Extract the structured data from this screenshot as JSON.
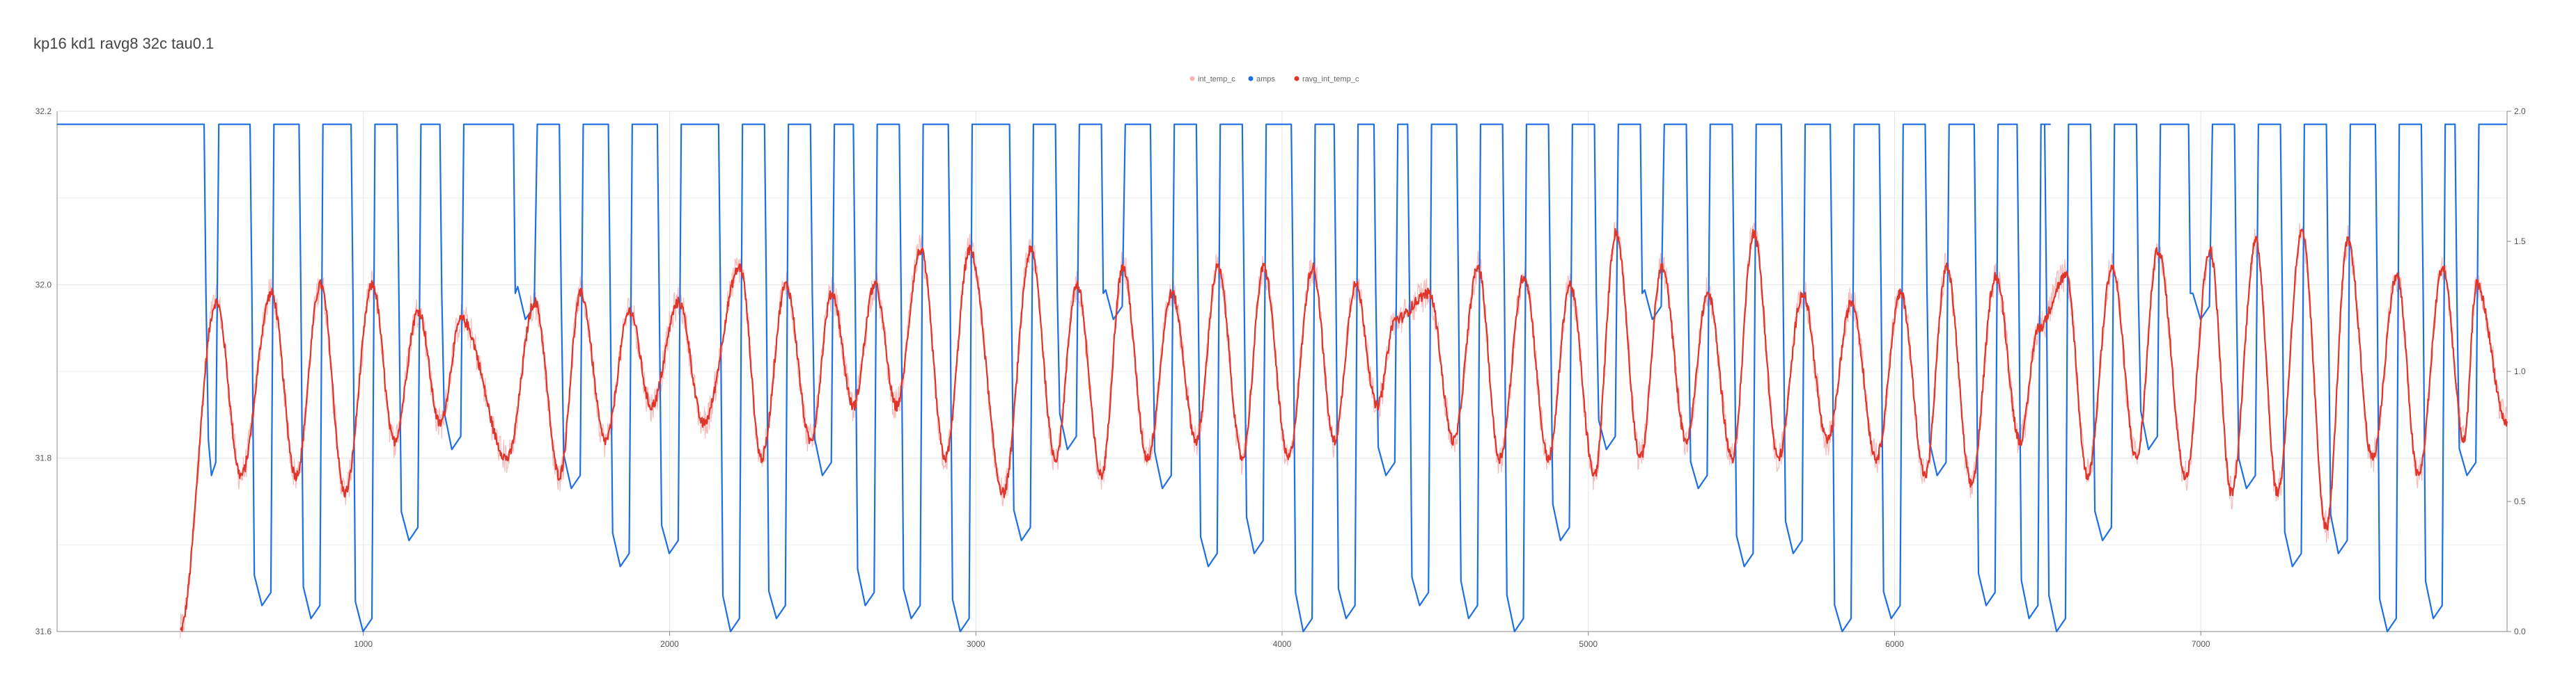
{
  "chart_data": {
    "type": "line",
    "title": "kp16 kd1 ravg8 32c tau0.1",
    "legend_position": "top-center",
    "grid": true,
    "x": {
      "range": [
        0,
        8000
      ],
      "ticks": [
        1000,
        2000,
        3000,
        4000,
        5000,
        6000,
        7000
      ]
    },
    "y_left": {
      "range": [
        31.6,
        32.2
      ],
      "ticks": [
        "31.6",
        "31.8",
        "32.0",
        "32.2"
      ]
    },
    "y_right": {
      "range": [
        0,
        2.0
      ],
      "ticks": [
        "0.0",
        "0.5",
        "1.0",
        "1.5",
        "2.0"
      ]
    },
    "series": [
      {
        "name": "int_temp_c",
        "axis": "left",
        "color": "#f4b5b5",
        "approx_shape": "noisy oscillation closely following ravg_int_temp_c, noise amplitude about 0.02 C"
      },
      {
        "name": "amps",
        "axis": "right",
        "color": "#1e6fe0",
        "approx_shape": "square-wave PWM switching between 0.0 and 1.95; flat at 1.95 from x=0 to about x=480, then about 63 pulses through x=8000; many cycles bottom out near 0.05-0.55 instead of 0"
      },
      {
        "name": "ravg_int_temp_c",
        "axis": "left",
        "color": "#e0352b",
        "approx_shape": "rises from 31.6 at x≈400 to 31.98 at x≈520, then oscillates with period ≈125 between minima 31.72-31.86 and maxima 31.92-32.06"
      }
    ],
    "peaks_approx": [
      {
        "x": 520,
        "y": 31.98
      },
      {
        "x": 700,
        "y": 31.99
      },
      {
        "x": 860,
        "y": 32.0
      },
      {
        "x": 1030,
        "y": 32.0
      },
      {
        "x": 1180,
        "y": 31.97
      },
      {
        "x": 1320,
        "y": 31.96
      },
      {
        "x": 1560,
        "y": 31.98
      },
      {
        "x": 1710,
        "y": 31.99
      },
      {
        "x": 1870,
        "y": 31.97
      },
      {
        "x": 2030,
        "y": 31.98
      },
      {
        "x": 2230,
        "y": 32.02
      },
      {
        "x": 2380,
        "y": 32.0
      },
      {
        "x": 2530,
        "y": 31.99
      },
      {
        "x": 2670,
        "y": 32.0
      },
      {
        "x": 2820,
        "y": 32.04
      },
      {
        "x": 2980,
        "y": 32.04
      },
      {
        "x": 3180,
        "y": 32.04
      },
      {
        "x": 3330,
        "y": 32.0
      },
      {
        "x": 3480,
        "y": 32.02
      },
      {
        "x": 3640,
        "y": 31.99
      },
      {
        "x": 3790,
        "y": 32.02
      },
      {
        "x": 3940,
        "y": 32.02
      },
      {
        "x": 4100,
        "y": 32.02
      },
      {
        "x": 4240,
        "y": 32.0
      },
      {
        "x": 4370,
        "y": 31.96
      },
      {
        "x": 4480,
        "y": 31.99
      },
      {
        "x": 4640,
        "y": 32.02
      },
      {
        "x": 4790,
        "y": 32.01
      },
      {
        "x": 4940,
        "y": 32.0
      },
      {
        "x": 5090,
        "y": 32.06
      },
      {
        "x": 5240,
        "y": 32.02
      },
      {
        "x": 5390,
        "y": 31.99
      },
      {
        "x": 5540,
        "y": 32.06
      },
      {
        "x": 5700,
        "y": 31.99
      },
      {
        "x": 5860,
        "y": 31.98
      },
      {
        "x": 6020,
        "y": 31.99
      },
      {
        "x": 6170,
        "y": 32.02
      },
      {
        "x": 6330,
        "y": 32.01
      },
      {
        "x": 6470,
        "y": 31.95
      },
      {
        "x": 6560,
        "y": 32.01
      },
      {
        "x": 6710,
        "y": 32.02
      },
      {
        "x": 6860,
        "y": 32.04
      },
      {
        "x": 7030,
        "y": 32.04
      },
      {
        "x": 7180,
        "y": 32.05
      },
      {
        "x": 7330,
        "y": 32.06
      },
      {
        "x": 7480,
        "y": 32.05
      },
      {
        "x": 7640,
        "y": 32.01
      },
      {
        "x": 7790,
        "y": 32.02
      },
      {
        "x": 7900,
        "y": 32.0
      }
    ],
    "troughs_approx": [
      {
        "x": 600,
        "y": 31.78
      },
      {
        "x": 780,
        "y": 31.78
      },
      {
        "x": 940,
        "y": 31.76
      },
      {
        "x": 1100,
        "y": 31.82
      },
      {
        "x": 1250,
        "y": 31.84
      },
      {
        "x": 1470,
        "y": 31.8
      },
      {
        "x": 1640,
        "y": 31.78
      },
      {
        "x": 1790,
        "y": 31.82
      },
      {
        "x": 1940,
        "y": 31.86
      },
      {
        "x": 2110,
        "y": 31.84
      },
      {
        "x": 2300,
        "y": 31.8
      },
      {
        "x": 2460,
        "y": 31.82
      },
      {
        "x": 2600,
        "y": 31.86
      },
      {
        "x": 2740,
        "y": 31.86
      },
      {
        "x": 2900,
        "y": 31.8
      },
      {
        "x": 3090,
        "y": 31.76
      },
      {
        "x": 3260,
        "y": 31.8
      },
      {
        "x": 3410,
        "y": 31.78
      },
      {
        "x": 3560,
        "y": 31.8
      },
      {
        "x": 3720,
        "y": 31.82
      },
      {
        "x": 3870,
        "y": 31.8
      },
      {
        "x": 4020,
        "y": 31.8
      },
      {
        "x": 4170,
        "y": 31.82
      },
      {
        "x": 4310,
        "y": 31.86
      },
      {
        "x": 4560,
        "y": 31.82
      },
      {
        "x": 4710,
        "y": 31.8
      },
      {
        "x": 4870,
        "y": 31.8
      },
      {
        "x": 5020,
        "y": 31.78
      },
      {
        "x": 5170,
        "y": 31.8
      },
      {
        "x": 5320,
        "y": 31.82
      },
      {
        "x": 5470,
        "y": 31.8
      },
      {
        "x": 5620,
        "y": 31.8
      },
      {
        "x": 5780,
        "y": 31.82
      },
      {
        "x": 5940,
        "y": 31.8
      },
      {
        "x": 6100,
        "y": 31.78
      },
      {
        "x": 6250,
        "y": 31.77
      },
      {
        "x": 6410,
        "y": 31.82
      },
      {
        "x": 6630,
        "y": 31.78
      },
      {
        "x": 6790,
        "y": 31.8
      },
      {
        "x": 6950,
        "y": 31.78
      },
      {
        "x": 7100,
        "y": 31.76
      },
      {
        "x": 7250,
        "y": 31.76
      },
      {
        "x": 7410,
        "y": 31.72
      },
      {
        "x": 7560,
        "y": 31.8
      },
      {
        "x": 7710,
        "y": 31.78
      },
      {
        "x": 7860,
        "y": 31.82
      }
    ],
    "colors": {
      "grid": "#e5e5e5",
      "axis": "#888888",
      "background": "#ffffff"
    }
  }
}
